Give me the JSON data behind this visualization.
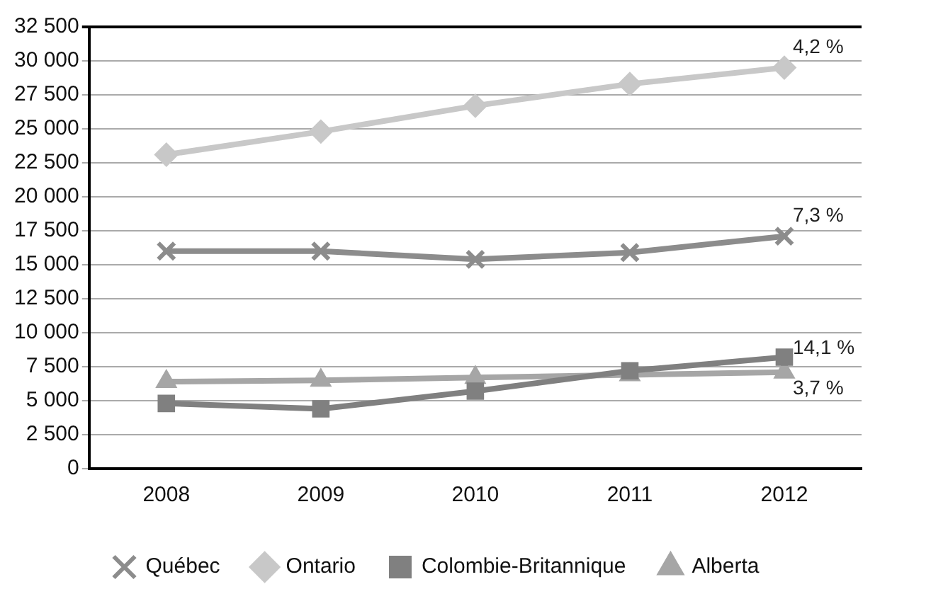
{
  "chart_data": {
    "type": "line",
    "categories": [
      "2008",
      "2009",
      "2010",
      "2011",
      "2012"
    ],
    "series": [
      {
        "name": "Alberta",
        "color": "#a6a6a6",
        "marker": "triangle",
        "values": [
          6400,
          6500,
          6700,
          6900,
          7100
        ]
      },
      {
        "name": "Colombie-Britannique",
        "color": "#808080",
        "marker": "square",
        "values": [
          4800,
          4400,
          5700,
          7200,
          8200
        ]
      },
      {
        "name": "Ontario",
        "color": "#c8c8c8",
        "marker": "diamond",
        "values": [
          23100,
          24800,
          26700,
          28300,
          29500
        ]
      },
      {
        "name": "Québec",
        "color": "#8c8c8c",
        "marker": "cross",
        "values": [
          16000,
          16000,
          15400,
          15900,
          17100
        ]
      }
    ],
    "ylim": [
      0,
      32500
    ],
    "yticks": [
      {
        "value": 0,
        "label": "0"
      },
      {
        "value": 2500,
        "label": "2 500"
      },
      {
        "value": 5000,
        "label": "5 000"
      },
      {
        "value": 7500,
        "label": "7 500"
      },
      {
        "value": 10000,
        "label": "10 000"
      },
      {
        "value": 12500,
        "label": "12 500"
      },
      {
        "value": 15000,
        "label": "15 000"
      },
      {
        "value": 17500,
        "label": "17 500"
      },
      {
        "value": 20000,
        "label": "20 000"
      },
      {
        "value": 22500,
        "label": "22 500"
      },
      {
        "value": 25000,
        "label": "25 000"
      },
      {
        "value": 27500,
        "label": "27 500"
      },
      {
        "value": 30000,
        "label": "30 000"
      },
      {
        "value": 32500,
        "label": "32 500"
      }
    ],
    "grid": "y",
    "legend": "bottom",
    "annotations": [
      {
        "text": "4,2 %",
        "x": "2012",
        "y": 29500
      },
      {
        "text": "7,3 %",
        "x": "2012",
        "y": 17100
      },
      {
        "text": "14,1 %",
        "x": "2012",
        "y": 8200
      },
      {
        "text": "3,7 %",
        "x": "2012",
        "y": 7100
      }
    ]
  }
}
